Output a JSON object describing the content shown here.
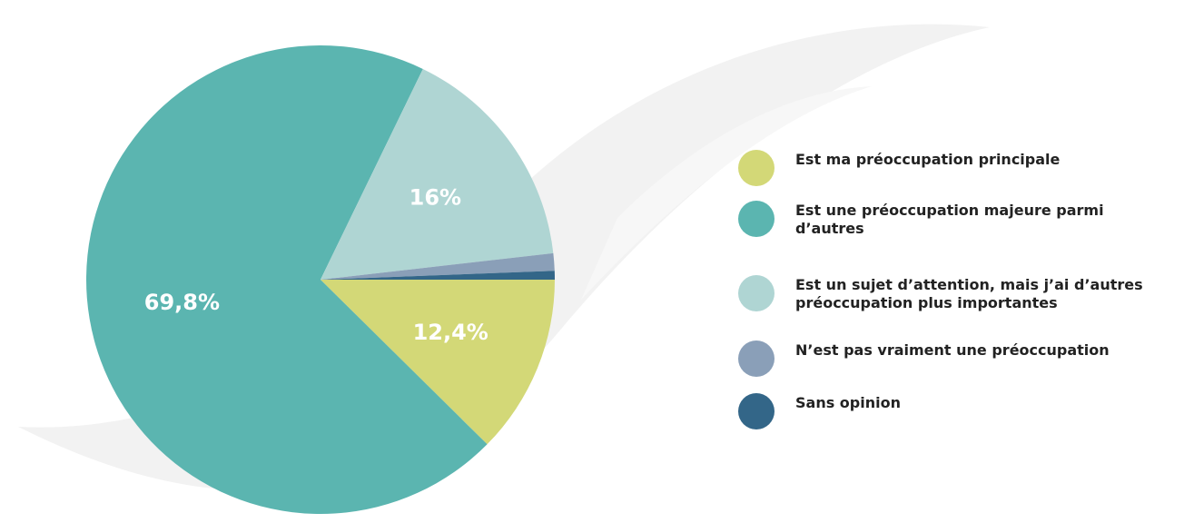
{
  "chart_data": {
    "type": "pie",
    "categories": [
      "Est ma préoccupation principale",
      "Est une préoccupation majeure parmi d’autres",
      "Est un sujet d’attention, mais j’ai d’autres préoccupation plus importantes",
      "N’est pas vraiment une préoccupation",
      "Sans opinion"
    ],
    "values": [
      12.4,
      69.8,
      16,
      1.2,
      0.6
    ],
    "value_labels": [
      "12,4%",
      "69,8%",
      "16%",
      null,
      null
    ],
    "colors": [
      "#d3d877",
      "#5bb5b0",
      "#afd5d3",
      "#8a9fb8",
      "#336688"
    ],
    "legend": "right"
  }
}
